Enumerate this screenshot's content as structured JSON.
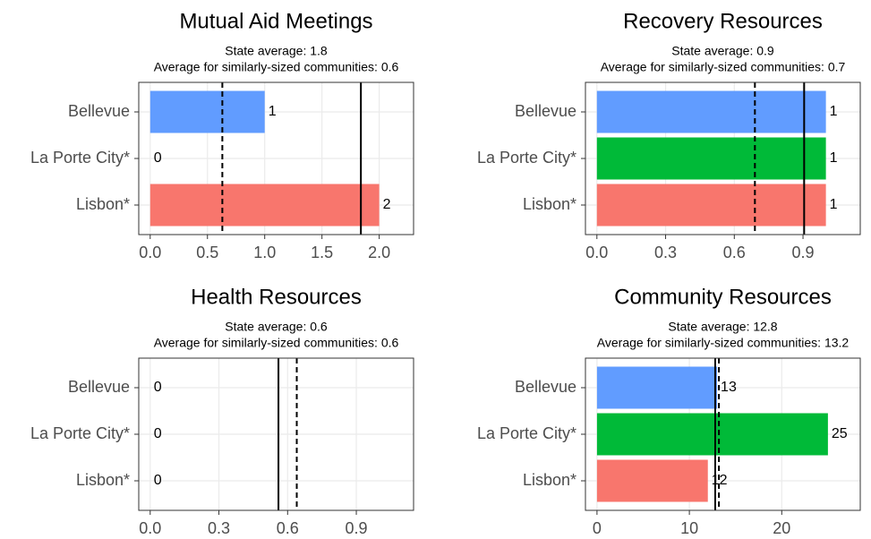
{
  "chart_data": [
    {
      "type": "bar",
      "orientation": "horizontal",
      "title": "Mutual Aid Meetings",
      "subtitle": [
        "State average: 1.8",
        "Average for similarly-sized communities: 0.6"
      ],
      "categories": [
        "Bellevue",
        "La Porte City*",
        "Lisbon*"
      ],
      "values": [
        1,
        0,
        2
      ],
      "colors": [
        "#619cff",
        "#00ba38",
        "#f8766d"
      ],
      "reference_lines": [
        {
          "value": 1.84,
          "style": "solid"
        },
        {
          "value": 0.63,
          "style": "dashed"
        }
      ],
      "xlim": [
        -0.1,
        2.3
      ],
      "xticks": [
        {
          "value": 0,
          "label": "0.0"
        },
        0.5,
        {
          "value": 1,
          "label": "1.0"
        },
        1.5,
        {
          "value": 2,
          "label": "2.0"
        }
      ],
      "grid": true
    },
    {
      "type": "bar",
      "orientation": "horizontal",
      "title": "Recovery Resources",
      "subtitle": [
        "State average: 0.9",
        "Average for similarly-sized communities: 0.7"
      ],
      "categories": [
        "Bellevue",
        "La Porte City*",
        "Lisbon*"
      ],
      "values": [
        1,
        1,
        1
      ],
      "colors": [
        "#619cff",
        "#00ba38",
        "#f8766d"
      ],
      "reference_lines": [
        {
          "value": 0.905,
          "style": "solid"
        },
        {
          "value": 0.69,
          "style": "dashed"
        }
      ],
      "xlim": [
        -0.05,
        1.15
      ],
      "xticks": [
        {
          "value": 0,
          "label": "0.0"
        },
        0.3,
        0.6,
        0.9
      ],
      "grid": true
    },
    {
      "type": "bar",
      "orientation": "horizontal",
      "title": "Health Resources",
      "subtitle": [
        "State average: 0.6",
        "Average for similarly-sized communities: 0.6"
      ],
      "categories": [
        "Bellevue",
        "La Porte City*",
        "Lisbon*"
      ],
      "values": [
        0,
        0,
        0
      ],
      "colors": [
        "#619cff",
        "#00ba38",
        "#f8766d"
      ],
      "reference_lines": [
        {
          "value": 0.56,
          "style": "solid"
        },
        {
          "value": 0.64,
          "style": "dashed"
        }
      ],
      "xlim": [
        -0.05,
        1.15
      ],
      "xticks": [
        {
          "value": 0,
          "label": "0.0"
        },
        0.3,
        0.6,
        0.9
      ],
      "grid": true
    },
    {
      "type": "bar",
      "orientation": "horizontal",
      "title": "Community Resources",
      "subtitle": [
        "State average: 12.8",
        "Average for similarly-sized communities: 13.2"
      ],
      "categories": [
        "Bellevue",
        "La Porte City*",
        "Lisbon*"
      ],
      "values": [
        13,
        25,
        12
      ],
      "colors": [
        "#619cff",
        "#00ba38",
        "#f8766d"
      ],
      "reference_lines": [
        {
          "value": 12.8,
          "style": "solid"
        },
        {
          "value": 13.2,
          "style": "dashed"
        }
      ],
      "xlim": [
        -1.25,
        28.5
      ],
      "xticks": [
        0,
        10,
        20
      ],
      "grid": true
    }
  ]
}
